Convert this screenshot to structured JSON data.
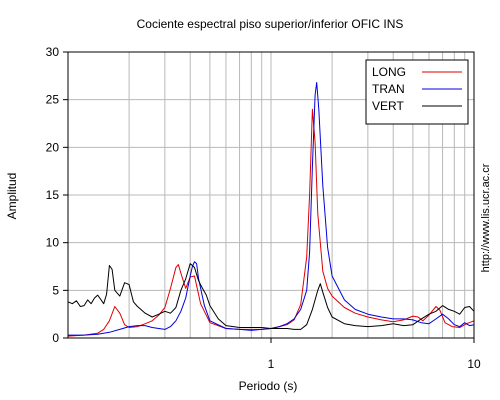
{
  "chart_data": {
    "type": "line",
    "title": "Cociente espectral piso superior/inferior  OFIC INS",
    "xlabel": "Periodo (s)",
    "ylabel": "Amplitud",
    "x_scale": "log",
    "xlim": [
      0.1,
      10
    ],
    "ylim": [
      0,
      30
    ],
    "x_tick_labels": [
      "1",
      "10"
    ],
    "x_ticks": [
      1,
      10
    ],
    "y_ticks": [
      0,
      5,
      10,
      15,
      20,
      25,
      30
    ],
    "y_tick_labels": [
      "0",
      "5",
      "10",
      "15",
      "20",
      "25",
      "30"
    ],
    "grid": true,
    "legend_position": "top-right",
    "side_note": "http://www.lis.ucr.ac.cr",
    "series": [
      {
        "name": "LONG",
        "color": "#e00000",
        "points": [
          [
            0.1,
            0.2
          ],
          [
            0.12,
            0.3
          ],
          [
            0.14,
            0.5
          ],
          [
            0.15,
            0.9
          ],
          [
            0.16,
            1.8
          ],
          [
            0.17,
            3.3
          ],
          [
            0.18,
            2.6
          ],
          [
            0.19,
            1.4
          ],
          [
            0.2,
            1.1
          ],
          [
            0.22,
            1.2
          ],
          [
            0.24,
            1.5
          ],
          [
            0.26,
            1.8
          ],
          [
            0.28,
            2.4
          ],
          [
            0.3,
            3.2
          ],
          [
            0.32,
            5.2
          ],
          [
            0.34,
            7.4
          ],
          [
            0.35,
            7.7
          ],
          [
            0.36,
            6.8
          ],
          [
            0.38,
            5.2
          ],
          [
            0.4,
            6.4
          ],
          [
            0.42,
            6.5
          ],
          [
            0.45,
            3.6
          ],
          [
            0.5,
            1.6
          ],
          [
            0.6,
            1.0
          ],
          [
            0.7,
            0.9
          ],
          [
            0.8,
            0.9
          ],
          [
            0.9,
            0.9
          ],
          [
            1.0,
            1.0
          ],
          [
            1.1,
            1.2
          ],
          [
            1.2,
            1.4
          ],
          [
            1.3,
            1.9
          ],
          [
            1.4,
            3.5
          ],
          [
            1.5,
            8.5
          ],
          [
            1.55,
            15.0
          ],
          [
            1.6,
            24.0
          ],
          [
            1.65,
            20.5
          ],
          [
            1.7,
            13.0
          ],
          [
            1.8,
            7.0
          ],
          [
            1.9,
            5.2
          ],
          [
            2.0,
            4.4
          ],
          [
            2.3,
            3.2
          ],
          [
            2.6,
            2.6
          ],
          [
            3.0,
            2.2
          ],
          [
            3.5,
            1.9
          ],
          [
            4.0,
            1.7
          ],
          [
            4.5,
            1.9
          ],
          [
            5.0,
            2.3
          ],
          [
            5.3,
            2.2
          ],
          [
            5.6,
            1.8
          ],
          [
            6.0,
            2.4
          ],
          [
            6.5,
            3.3
          ],
          [
            6.8,
            2.9
          ],
          [
            7.2,
            1.6
          ],
          [
            7.8,
            1.2
          ],
          [
            8.5,
            1.1
          ],
          [
            9.2,
            1.5
          ],
          [
            10,
            1.8
          ]
        ]
      },
      {
        "name": "TRAN",
        "color": "#0000e0",
        "points": [
          [
            0.1,
            0.3
          ],
          [
            0.12,
            0.3
          ],
          [
            0.14,
            0.4
          ],
          [
            0.16,
            0.6
          ],
          [
            0.18,
            0.9
          ],
          [
            0.2,
            1.2
          ],
          [
            0.22,
            1.3
          ],
          [
            0.24,
            1.3
          ],
          [
            0.26,
            1.1
          ],
          [
            0.28,
            1.0
          ],
          [
            0.3,
            0.9
          ],
          [
            0.32,
            1.2
          ],
          [
            0.34,
            1.8
          ],
          [
            0.36,
            2.8
          ],
          [
            0.38,
            4.2
          ],
          [
            0.4,
            6.5
          ],
          [
            0.41,
            7.5
          ],
          [
            0.42,
            8.0
          ],
          [
            0.43,
            7.8
          ],
          [
            0.44,
            6.2
          ],
          [
            0.47,
            3.4
          ],
          [
            0.5,
            1.8
          ],
          [
            0.6,
            1.0
          ],
          [
            0.7,
            0.9
          ],
          [
            0.8,
            0.8
          ],
          [
            0.9,
            0.9
          ],
          [
            1.0,
            1.0
          ],
          [
            1.1,
            1.2
          ],
          [
            1.2,
            1.5
          ],
          [
            1.3,
            2.0
          ],
          [
            1.4,
            3.0
          ],
          [
            1.5,
            5.0
          ],
          [
            1.55,
            9.0
          ],
          [
            1.6,
            18.0
          ],
          [
            1.65,
            25.5
          ],
          [
            1.68,
            26.8
          ],
          [
            1.72,
            24.0
          ],
          [
            1.8,
            16.0
          ],
          [
            1.9,
            9.5
          ],
          [
            2.0,
            6.5
          ],
          [
            2.3,
            4.0
          ],
          [
            2.6,
            3.0
          ],
          [
            3.0,
            2.5
          ],
          [
            3.5,
            2.2
          ],
          [
            4.0,
            2.0
          ],
          [
            4.5,
            2.0
          ],
          [
            5.0,
            1.9
          ],
          [
            5.5,
            1.6
          ],
          [
            6.0,
            1.5
          ],
          [
            6.5,
            2.0
          ],
          [
            7.0,
            2.5
          ],
          [
            7.5,
            2.0
          ],
          [
            8.0,
            1.4
          ],
          [
            8.5,
            1.2
          ],
          [
            9.0,
            1.6
          ],
          [
            9.5,
            1.3
          ],
          [
            10,
            1.4
          ]
        ]
      },
      {
        "name": "VERT",
        "color": "#000000",
        "points": [
          [
            0.1,
            3.8
          ],
          [
            0.105,
            3.6
          ],
          [
            0.11,
            3.9
          ],
          [
            0.115,
            3.3
          ],
          [
            0.12,
            3.4
          ],
          [
            0.125,
            4.0
          ],
          [
            0.13,
            3.6
          ],
          [
            0.135,
            4.2
          ],
          [
            0.14,
            4.5
          ],
          [
            0.15,
            3.6
          ],
          [
            0.155,
            4.6
          ],
          [
            0.16,
            7.6
          ],
          [
            0.165,
            7.2
          ],
          [
            0.17,
            5.0
          ],
          [
            0.18,
            4.4
          ],
          [
            0.19,
            5.8
          ],
          [
            0.2,
            5.6
          ],
          [
            0.21,
            3.8
          ],
          [
            0.22,
            3.3
          ],
          [
            0.24,
            2.6
          ],
          [
            0.26,
            2.2
          ],
          [
            0.28,
            2.5
          ],
          [
            0.3,
            2.8
          ],
          [
            0.32,
            2.6
          ],
          [
            0.34,
            3.2
          ],
          [
            0.36,
            5.0
          ],
          [
            0.38,
            6.2
          ],
          [
            0.4,
            7.8
          ],
          [
            0.42,
            7.4
          ],
          [
            0.44,
            6.0
          ],
          [
            0.46,
            5.2
          ],
          [
            0.48,
            4.5
          ],
          [
            0.5,
            3.4
          ],
          [
            0.55,
            2.0
          ],
          [
            0.6,
            1.3
          ],
          [
            0.7,
            1.1
          ],
          [
            0.8,
            1.1
          ],
          [
            0.9,
            1.1
          ],
          [
            1.0,
            1.0
          ],
          [
            1.1,
            1.0
          ],
          [
            1.2,
            1.0
          ],
          [
            1.3,
            0.9
          ],
          [
            1.4,
            0.9
          ],
          [
            1.5,
            1.4
          ],
          [
            1.6,
            3.0
          ],
          [
            1.7,
            5.0
          ],
          [
            1.75,
            5.7
          ],
          [
            1.8,
            4.8
          ],
          [
            1.9,
            3.2
          ],
          [
            2.0,
            2.2
          ],
          [
            2.3,
            1.5
          ],
          [
            2.6,
            1.3
          ],
          [
            3.0,
            1.2
          ],
          [
            3.5,
            1.3
          ],
          [
            4.0,
            1.5
          ],
          [
            4.5,
            1.3
          ],
          [
            5.0,
            1.4
          ],
          [
            5.5,
            2.0
          ],
          [
            6.0,
            2.5
          ],
          [
            6.5,
            2.8
          ],
          [
            7.0,
            3.4
          ],
          [
            7.5,
            3.0
          ],
          [
            8.0,
            2.8
          ],
          [
            8.5,
            2.5
          ],
          [
            9.0,
            3.2
          ],
          [
            9.5,
            3.3
          ],
          [
            10,
            2.8
          ]
        ]
      }
    ]
  }
}
